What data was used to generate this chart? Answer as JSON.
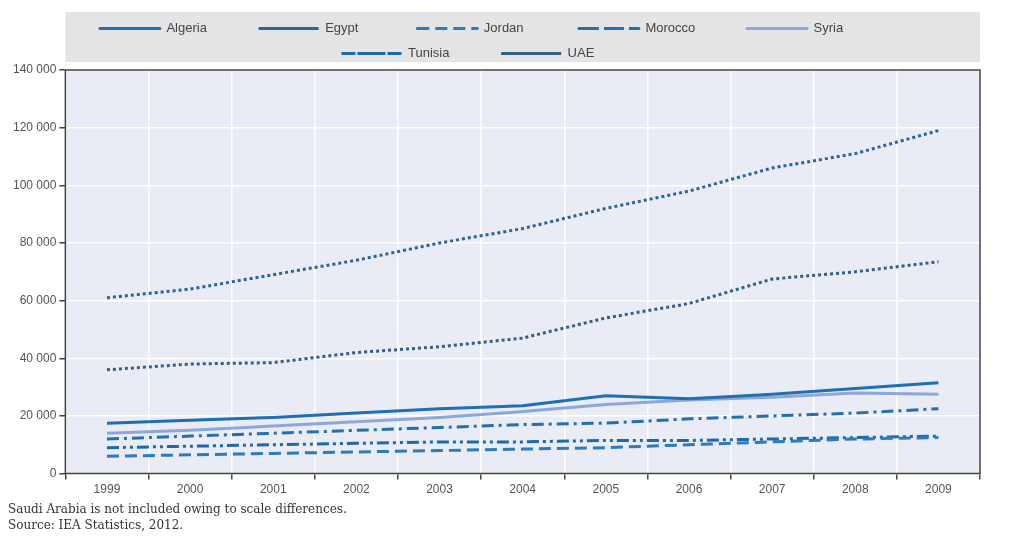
{
  "chart_data": {
    "type": "line",
    "categories": [
      "1999",
      "2000",
      "2001",
      "2002",
      "2003",
      "2004",
      "2005",
      "2006",
      "2007",
      "2008",
      "2009"
    ],
    "series": [
      {
        "name": "Algeria",
        "color": "#1f6fb2",
        "line_style": "solid",
        "values": [
          17500,
          18500,
          19500,
          21000,
          22500,
          23500,
          27000,
          26000,
          27500,
          29500,
          31500
        ]
      },
      {
        "name": "Egypt",
        "color": "#2a6496",
        "line_style": "dotted",
        "values": [
          61000,
          64000,
          69000,
          74000,
          80000,
          85000,
          92000,
          98000,
          106000,
          111000,
          119000
        ]
      },
      {
        "name": "Jordan",
        "color": "#2b7bbd",
        "line_style": "dashed",
        "values": [
          6000,
          6500,
          7000,
          7500,
          8000,
          8500,
          9000,
          10000,
          11000,
          12000,
          12500
        ]
      },
      {
        "name": "Morocco",
        "color": "#2470ad",
        "line_style": "dashdot",
        "values": [
          12000,
          13000,
          14000,
          15000,
          16000,
          17000,
          17500,
          19000,
          20000,
          21000,
          22500
        ]
      },
      {
        "name": "Syria",
        "color": "#8da8d6",
        "line_style": "solid",
        "values": [
          14000,
          15000,
          16500,
          18000,
          19500,
          21500,
          24000,
          25500,
          26500,
          28000,
          27500
        ]
      },
      {
        "name": "Tunisia",
        "color": "#1d6aa8",
        "line_style": "dashdotdot",
        "values": [
          9000,
          9500,
          10000,
          10500,
          11000,
          11000,
          11500,
          11500,
          12000,
          12500,
          13000
        ]
      },
      {
        "name": "UAE",
        "color": "#34607f",
        "line_style": "dotted",
        "values": [
          36000,
          38000,
          38500,
          42000,
          44000,
          47000,
          54000,
          59000,
          67500,
          70000,
          73500
        ]
      }
    ],
    "ylim": [
      0,
      140000
    ],
    "yticks": [
      0,
      {
        "value": 20000,
        "label": "20 000"
      },
      {
        "value": 40000,
        "label": "40 000"
      },
      {
        "value": 60000,
        "label": "60 000"
      },
      {
        "value": 80000,
        "label": "80 000"
      },
      {
        "value": 100000,
        "label": "100 000"
      },
      {
        "value": 120000,
        "label": "120 000"
      },
      {
        "value": 140000,
        "label": "140 000"
      }
    ],
    "grid": true,
    "legend": "top",
    "marker": "none",
    "annotations": [
      "Saudi Arabia is not included owing to scale differences.",
      "Source:  IEA Statistics, 2012."
    ]
  }
}
